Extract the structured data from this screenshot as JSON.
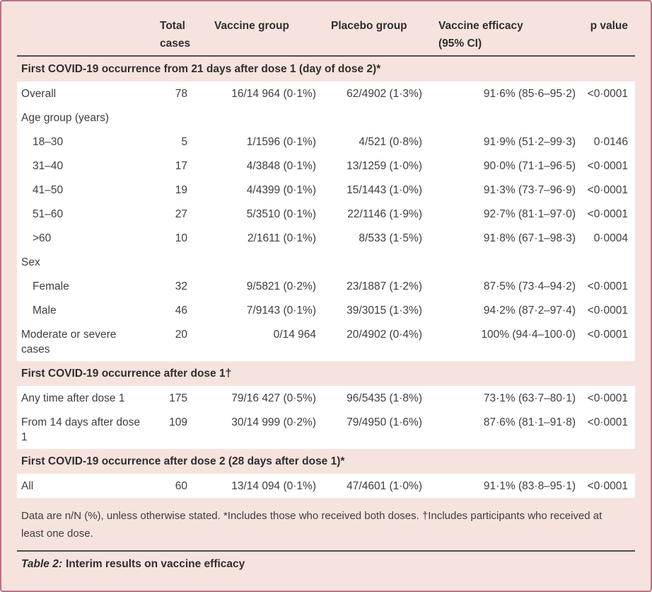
{
  "colors": {
    "background_pink": "#f7e3de",
    "border_rose": "#bd7186",
    "rule_gray": "#4e4e4e",
    "row_white": "#ffffff",
    "text": "#3e3e3e"
  },
  "table": {
    "header": {
      "total": "Total cases",
      "vaccine": "Vaccine group",
      "placebo": "Placebo group",
      "efficacy_line1": "Vaccine efficacy",
      "efficacy_line2": "(95% CI)",
      "p": "p value"
    },
    "sections": [
      {
        "title": "First COVID-19 occurrence from 21 days after dose 1 (day of dose 2)*",
        "rows": [
          {
            "label": "Overall",
            "total": "78",
            "vaccine": "16/14 964 (0·1%)",
            "placebo": "62/4902 (1·3%)",
            "efficacy": "91·6% (85·6–95·2)",
            "p": "<0·0001"
          },
          {
            "label": "Age group (years)",
            "total": "",
            "vaccine": "",
            "placebo": "",
            "efficacy": "",
            "p": ""
          },
          {
            "label": "18–30",
            "total": "5",
            "vaccine": "1/1596 (0·1%)",
            "placebo": "4/521 (0·8%)",
            "efficacy": "91·9% (51·2–99·3)",
            "p": "0·0146"
          },
          {
            "label": "31–40",
            "total": "17",
            "vaccine": "4/3848 (0·1%)",
            "placebo": "13/1259 (1·0%)",
            "efficacy": "90·0% (71·1–96·5)",
            "p": "<0·0001"
          },
          {
            "label": "41–50",
            "total": "19",
            "vaccine": "4/4399 (0·1%)",
            "placebo": "15/1443 (1·0%)",
            "efficacy": "91·3% (73·7–96·9)",
            "p": "<0·0001"
          },
          {
            "label": "51–60",
            "total": "27",
            "vaccine": "5/3510 (0·1%)",
            "placebo": "22/1146 (1·9%)",
            "efficacy": "92·7% (81·1–97·0)",
            "p": "<0·0001"
          },
          {
            "label": ">60",
            "total": "10",
            "vaccine": "2/1611 (0·1%)",
            "placebo": "8/533 (1·5%)",
            "efficacy": "91·8% (67·1–98·3)",
            "p": "0·0004"
          },
          {
            "label": "Sex",
            "total": "",
            "vaccine": "",
            "placebo": "",
            "efficacy": "",
            "p": ""
          },
          {
            "label": "Female",
            "total": "32",
            "vaccine": "9/5821 (0·2%)",
            "placebo": "23/1887 (1·2%)",
            "efficacy": "87·5% (73·4–94·2)",
            "p": "<0·0001"
          },
          {
            "label": "Male",
            "total": "46",
            "vaccine": "7/9143 (0·1%)",
            "placebo": "39/3015 (1·3%)",
            "efficacy": "94·2% (87·2–97·4)",
            "p": "<0·0001"
          },
          {
            "label": "Moderate or severe cases",
            "total": "20",
            "vaccine": "0/14 964",
            "placebo": "20/4902 (0·4%)",
            "efficacy": "100% (94·4–100·0)",
            "p": "<0·0001"
          }
        ]
      },
      {
        "title": "First COVID-19 occurrence after dose 1†",
        "rows": [
          {
            "label": "Any time after dose 1",
            "total": "175",
            "vaccine": "79/16 427 (0·5%)",
            "placebo": "96/5435 (1·8%)",
            "efficacy": "73·1% (63·7–80·1)",
            "p": "<0·0001"
          },
          {
            "label": "From 14 days after dose 1",
            "total": "109",
            "vaccine": "30/14 999 (0·2%)",
            "placebo": "79/4950 (1·6%)",
            "efficacy": "87·6% (81·1–91·8)",
            "p": "<0·0001"
          }
        ]
      },
      {
        "title": "First COVID-19 occurrence after dose 2 (28 days after dose 1)*",
        "rows": [
          {
            "label": "All",
            "total": "60",
            "vaccine": "13/14 094 (0·1%)",
            "placebo": "47/4601 (1·0%)",
            "efficacy": "91·1% (83·8–95·1)",
            "p": "<0·0001"
          }
        ]
      }
    ],
    "footnote": "Data are n/N (%), unless otherwise stated. *Includes those who received both doses. †Includes participants who received at least one dose.",
    "caption": {
      "prefix": "Table 2:",
      "text": "Interim results on vaccine efficacy"
    }
  }
}
